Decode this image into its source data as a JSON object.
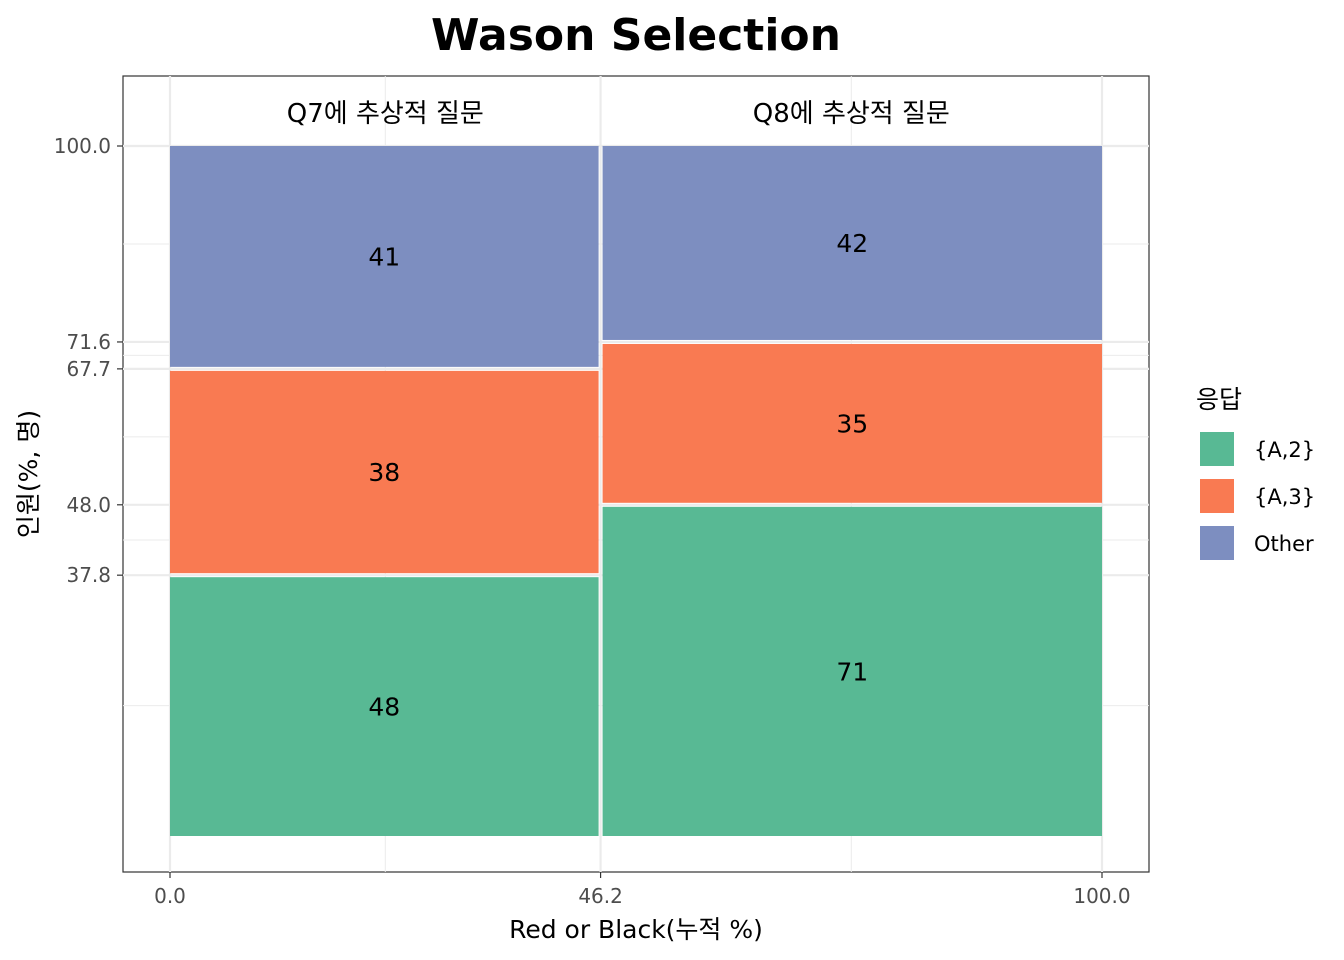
{
  "chart_data": {
    "type": "mosaic",
    "title": "Wason Selection",
    "xlabel": "Red or Black(누적 %)",
    "ylabel": "인원(%, 명)",
    "xlim": [
      0,
      100
    ],
    "ylim": [
      0,
      100
    ],
    "x_ticks": [
      "0.0",
      "46.2",
      "100.0"
    ],
    "y_ticks": [
      "37.8",
      "48.0",
      "67.7",
      "71.6",
      "100.0"
    ],
    "legend": {
      "title": "응답",
      "position": "right",
      "entries": [
        {
          "name": "{A,2}",
          "color": "#58B994"
        },
        {
          "name": "{A,3}",
          "color": "#F97A52"
        },
        {
          "name": "Other",
          "color": "#7D8EC0"
        }
      ]
    },
    "panels": [
      {
        "label": "Q7에 추상적 질문",
        "x_start": 0.0,
        "x_end": 46.2,
        "segments": [
          {
            "response": "{A,2}",
            "count": 48,
            "y_start": 0.0,
            "y_end": 37.8
          },
          {
            "response": "{A,3}",
            "count": 38,
            "y_start": 37.8,
            "y_end": 67.7
          },
          {
            "response": "Other",
            "count": 41,
            "y_start": 67.7,
            "y_end": 100.0
          }
        ]
      },
      {
        "label": "Q8에 추상적 질문",
        "x_start": 46.2,
        "x_end": 100.0,
        "segments": [
          {
            "response": "{A,2}",
            "count": 71,
            "y_start": 0.0,
            "y_end": 48.0
          },
          {
            "response": "{A,3}",
            "count": 35,
            "y_start": 48.0,
            "y_end": 71.6
          },
          {
            "response": "Other",
            "count": 42,
            "y_start": 71.6,
            "y_end": 100.0
          }
        ]
      }
    ],
    "grid": true
  }
}
